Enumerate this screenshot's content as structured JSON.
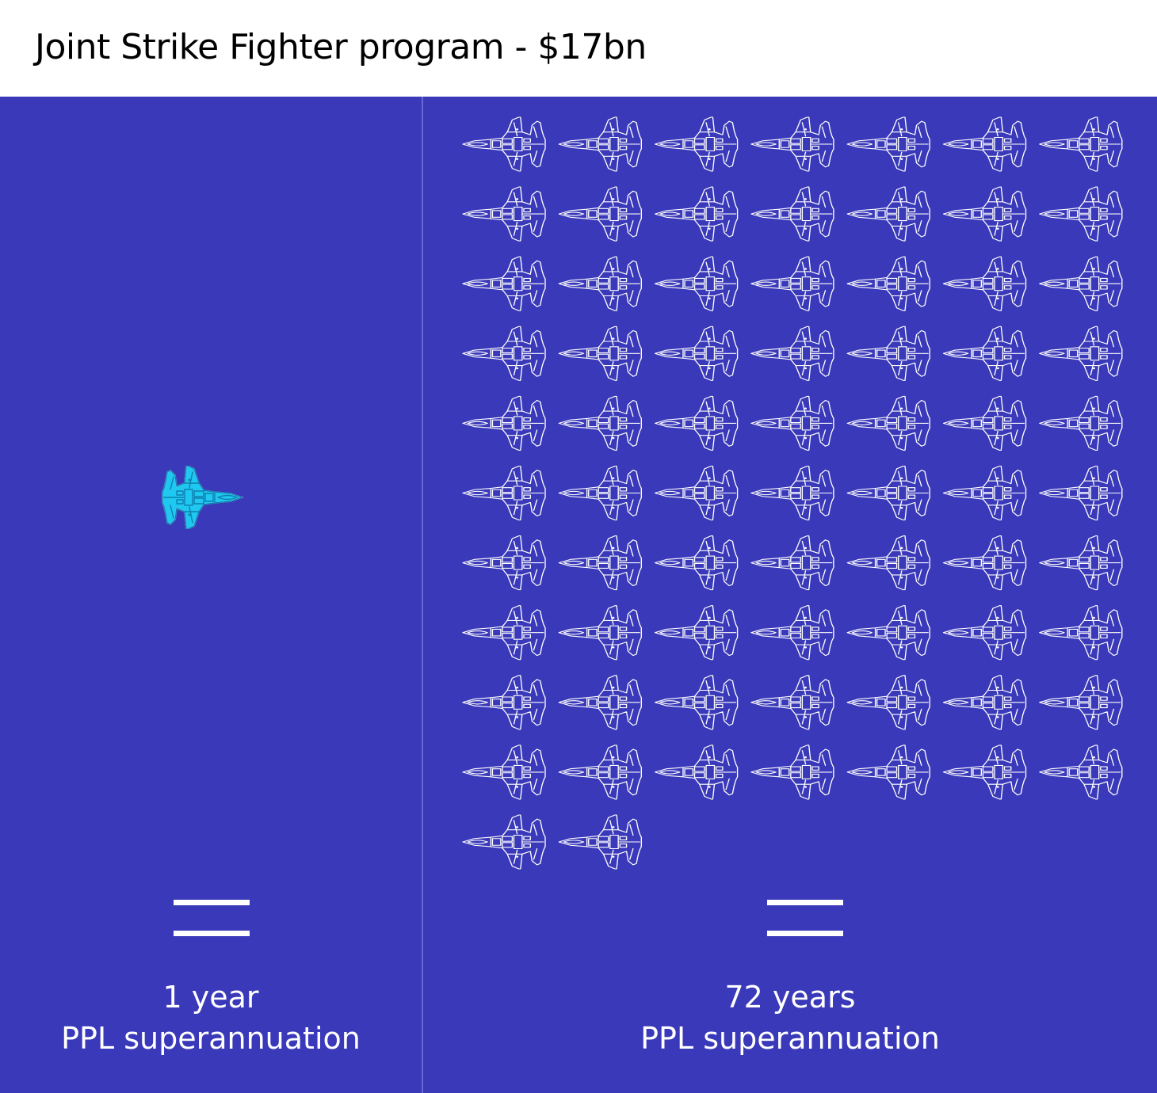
{
  "header": {
    "title": "Joint Strike Fighter program - $17bn"
  },
  "left": {
    "line1": "1 year",
    "line2": "PPL superannuation",
    "jet_count": 1
  },
  "right": {
    "line1": "72 years",
    "line2": "PPL superannuation",
    "jet_count": 72
  },
  "colors": {
    "panel": "#3a39b9",
    "jet_outline": "#ffffff",
    "highlight_jet": "#1ec8f0"
  },
  "icons": {
    "jet": "fighter-jet-icon",
    "equals": "equals-sign-icon"
  }
}
